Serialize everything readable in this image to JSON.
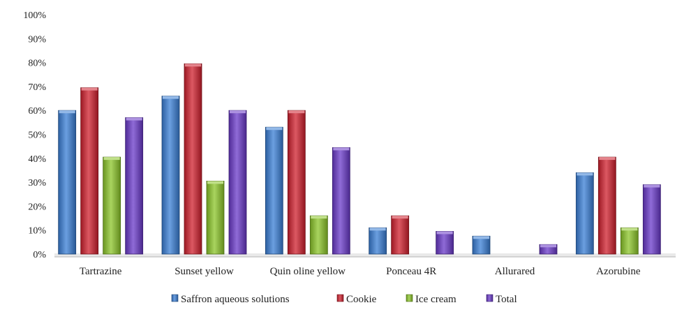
{
  "chart_data": {
    "type": "bar",
    "title": "",
    "xlabel": "",
    "ylabel": "",
    "ylim": [
      0,
      100
    ],
    "y_ticks": [
      "0%",
      "10%",
      "20%",
      "30%",
      "40%",
      "50%",
      "60%",
      "70%",
      "80%",
      "90%",
      "100%"
    ],
    "grid": false,
    "legend_position": "bottom",
    "categories": [
      "Tartrazine",
      "Sunset yellow",
      "Quin oline yellow",
      "Ponceau 4R",
      "Allurared",
      "Azorubine"
    ],
    "series": [
      {
        "name": "Saffron aqueous solutions",
        "color": "#3a7fd6",
        "values": [
          60,
          66,
          53,
          11,
          7.5,
          34
        ]
      },
      {
        "name": "Cookie",
        "color": "#d0202e",
        "values": [
          69.5,
          79.5,
          60,
          16,
          0,
          40.5
        ]
      },
      {
        "name": "Ice cream",
        "color": "#8cc629",
        "values": [
          40.5,
          30.5,
          16,
          0,
          0,
          11
        ]
      },
      {
        "name": "Total",
        "color": "#6a39c9",
        "values": [
          57,
          60,
          44.5,
          9.5,
          4,
          29
        ]
      }
    ]
  }
}
